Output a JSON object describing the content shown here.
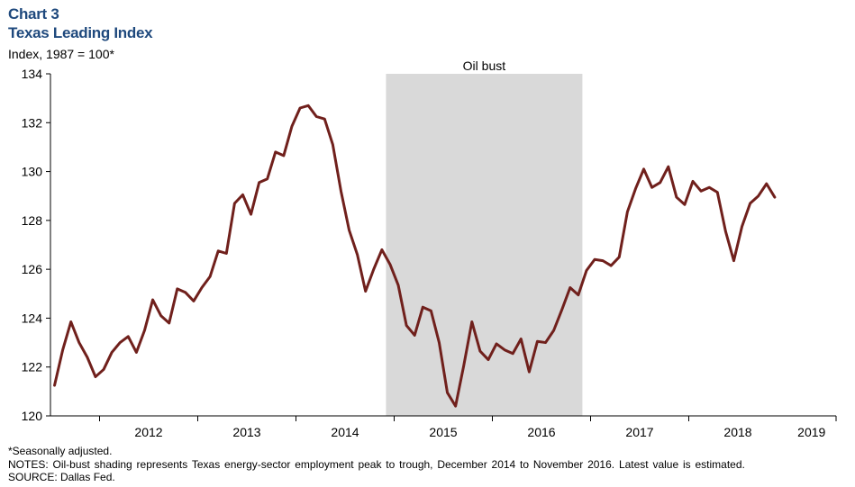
{
  "header": {
    "chart_number": "Chart 3",
    "title": "Texas Leading Index",
    "y_unit": "Index, 1987 = 100*"
  },
  "footnotes": {
    "line1": "*Seasonally adjusted.",
    "line2": "NOTES: Oil-bust shading represents Texas energy-sector employment peak to trough, December 2014 to November 2016. Latest value is estimated.",
    "line3": "SOURCE: Dallas Fed."
  },
  "colors": {
    "line": "#70201c",
    "shade": "#d9d9d9",
    "title": "#1f497d"
  },
  "chart_data": {
    "type": "line",
    "title": "Texas Leading Index",
    "ylabel": "Index, 1987 = 100*",
    "xlabel": "",
    "ylim": [
      120,
      134
    ],
    "yticks": [
      120,
      122,
      124,
      126,
      128,
      130,
      132,
      134
    ],
    "x_start": "2011-07",
    "x_end": "2019-06",
    "year_labels": [
      "2012",
      "2013",
      "2014",
      "2015",
      "2016",
      "2017",
      "2018",
      "2019"
    ],
    "grid": false,
    "shaded_region": {
      "label": "Oil bust",
      "from": "2014-12",
      "to": "2016-11"
    },
    "series": [
      {
        "start": "2011-07",
        "values": [
          121.25,
          122.7,
          123.85,
          123.0,
          122.4,
          121.6,
          121.9,
          122.6,
          123.0,
          123.25,
          122.6,
          123.5,
          124.75,
          124.1,
          123.8,
          125.2,
          125.05,
          124.7,
          125.25,
          125.7,
          126.75,
          126.65,
          128.7,
          129.05,
          128.25,
          129.55,
          129.7,
          130.8,
          130.65,
          131.85,
          132.6,
          132.7,
          132.25,
          132.15,
          131.1,
          129.2,
          127.6,
          126.6,
          125.1,
          126.0,
          126.8,
          126.2,
          125.35,
          123.7,
          123.3,
          124.45,
          124.3,
          123.0,
          120.95,
          120.4,
          122.05,
          123.85,
          122.65,
          122.3,
          122.95,
          122.7,
          122.55,
          123.15,
          121.8,
          123.05,
          123.0,
          123.5,
          124.35,
          125.25,
          124.95,
          125.95,
          126.4,
          126.35,
          126.15,
          126.5,
          128.35,
          129.3,
          130.1,
          129.35,
          129.55,
          130.2,
          128.95,
          128.65,
          129.6,
          129.2,
          129.35,
          129.15,
          127.55,
          126.35,
          127.75,
          128.7,
          129.0,
          129.5,
          128.95
        ]
      }
    ]
  }
}
